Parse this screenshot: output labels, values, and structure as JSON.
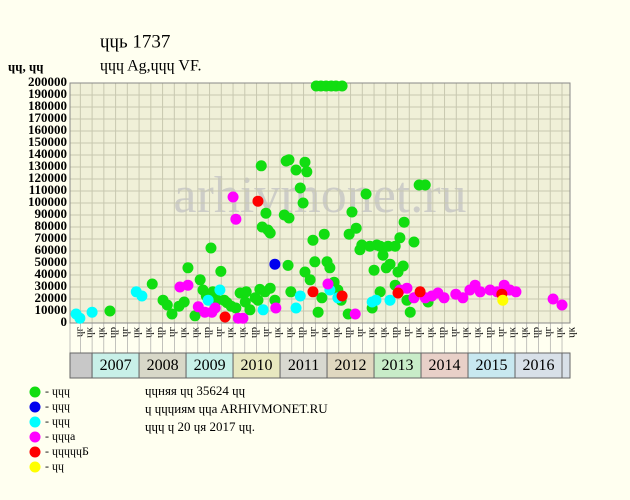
{
  "chart_data": {
    "type": "scatter",
    "title": "ɥɥь 1737",
    "subtitle": "ɥɥɥ Ag,ɥɥɥ VF.",
    "y_label": "ɥɥ, ɥɥ",
    "watermark": "arhivmonet.ru",
    "notes": [
      "ɥɥняя ɥɥ 35624 ɥɥ",
      "ɥ ɥɥɥиям ɥɥa ARHIVMONET.RU",
      "ɥɥɥ ɥ 20 ɥя 2017 ɥɥ."
    ],
    "grid": true,
    "xlim": [
      2006.53,
      2017.17
    ],
    "ylim": [
      0,
      200000
    ],
    "yticks": [
      0,
      10000,
      20000,
      30000,
      40000,
      50000,
      60000,
      70000,
      80000,
      90000,
      100000,
      110000,
      120000,
      130000,
      140000,
      150000,
      160000,
      170000,
      180000,
      190000,
      200000
    ],
    "xticks": [
      {
        "value": 2006.5,
        "label": "ɥг"
      },
      {
        "value": 2006.75,
        "label": "ɥк"
      },
      {
        "value": 2007,
        "label": "ɥк"
      },
      {
        "value": 2007.25,
        "label": "ɥр"
      },
      {
        "value": 2007.5,
        "label": "ɥг"
      },
      {
        "value": 2007.75,
        "label": "ɥк"
      },
      {
        "value": 2008,
        "label": "ɥк"
      },
      {
        "value": 2008.25,
        "label": "ɥр"
      },
      {
        "value": 2008.5,
        "label": "ɥг"
      },
      {
        "value": 2008.75,
        "label": "ɥк"
      },
      {
        "value": 2009,
        "label": "ɥк"
      },
      {
        "value": 2009.25,
        "label": "ɥр"
      },
      {
        "value": 2009.5,
        "label": "ɥг"
      },
      {
        "value": 2009.75,
        "label": "ɥк"
      },
      {
        "value": 2010,
        "label": "ɥк"
      },
      {
        "value": 2010.25,
        "label": "ɥр"
      },
      {
        "value": 2010.5,
        "label": "ɥг"
      },
      {
        "value": 2010.75,
        "label": "ɥк"
      },
      {
        "value": 2011,
        "label": "ɥк"
      },
      {
        "value": 2011.25,
        "label": "ɥр"
      },
      {
        "value": 2011.5,
        "label": "ɥг"
      },
      {
        "value": 2011.75,
        "label": "ɥк"
      },
      {
        "value": 2012,
        "label": "ɥк"
      },
      {
        "value": 2012.25,
        "label": "ɥр"
      },
      {
        "value": 2012.5,
        "label": "ɥг"
      },
      {
        "value": 2012.75,
        "label": "ɥк"
      },
      {
        "value": 2013,
        "label": "ɥк"
      },
      {
        "value": 2013.25,
        "label": "ɥр"
      },
      {
        "value": 2013.5,
        "label": "ɥг"
      },
      {
        "value": 2013.75,
        "label": "ɥк"
      },
      {
        "value": 2014,
        "label": "ɥк"
      },
      {
        "value": 2014.25,
        "label": "ɥр"
      },
      {
        "value": 2014.5,
        "label": "ɥг"
      },
      {
        "value": 2014.75,
        "label": "ɥк"
      },
      {
        "value": 2015,
        "label": "ɥк"
      },
      {
        "value": 2015.25,
        "label": "ɥр"
      },
      {
        "value": 2015.5,
        "label": "ɥг"
      },
      {
        "value": 2015.75,
        "label": "ɥк"
      },
      {
        "value": 2016,
        "label": "ɥк"
      },
      {
        "value": 2016.25,
        "label": "ɥр"
      },
      {
        "value": 2016.5,
        "label": "ɥг"
      },
      {
        "value": 2016.75,
        "label": "ɥк"
      },
      {
        "value": 2017,
        "label": "ɥк"
      }
    ],
    "years": [
      2007,
      2008,
      2009,
      2010,
      2011,
      2012,
      2013,
      2014,
      2015,
      2016
    ],
    "year_colors": [
      "#c8f0e8",
      "#d8d8c8",
      "#c8f0e8",
      "#e8e8c0",
      "#d8d8d0",
      "#e0d8c0",
      "#c8ecc8",
      "#e8d0c8",
      "#c8e8f0",
      "#d8e0e8"
    ],
    "series": [
      {
        "name": "- ɥɥɥ",
        "color": "#11dd11",
        "x": [
          2007.38,
          2008.28,
          2008.51,
          2008.6,
          2008.7,
          2008.85,
          2008.96,
          2009.04,
          2009.19,
          2009.3,
          2009.36,
          2009.43,
          2009.53,
          2009.57,
          2009.66,
          2009.74,
          2009.81,
          2009.87,
          2009.96,
          2010.06,
          2010.15,
          2010.26,
          2010.28,
          2010.36,
          2010.47,
          2010.53,
          2010.57,
          2010.6,
          2010.62,
          2010.68,
          2010.7,
          2010.74,
          2010.79,
          2010.79,
          2010.89,
          2011.09,
          2011.13,
          2011.19,
          2011.19,
          2011.17,
          2011.23,
          2011.34,
          2011.43,
          2011.49,
          2011.53,
          2011.57,
          2011.53,
          2011.64,
          2011.7,
          2011.74,
          2011.81,
          2011.89,
          2011.77,
          2011.87,
          2011.98,
          2012.09,
          2012.19,
          2012.32,
          2011.94,
          2012,
          2012.06,
          2012.15,
          2012.23,
          2012.3,
          2012.45,
          2012.47,
          2012.53,
          2012.62,
          2012.7,
          2012.74,
          2012.83,
          2012.91,
          2012.96,
          2013,
          2013.06,
          2013.13,
          2013.13,
          2013.19,
          2013.26,
          2013.3,
          2013.34,
          2013.45,
          2013.45,
          2013.51,
          2013.55,
          2013.62,
          2013.64,
          2013.7,
          2013.77,
          2013.85,
          2013.96,
          2014.09,
          2014.15
        ],
        "values": [
          10000,
          32500,
          19000,
          15000,
          7500,
          14000,
          17500,
          46000,
          6000,
          36000,
          27500,
          22500,
          62500,
          26000,
          19000,
          43000,
          19000,
          17000,
          14000,
          12500,
          25000,
          17500,
          26000,
          11000,
          21000,
          19000,
          28000,
          131000,
          80000,
          26000,
          91500,
          77500,
          75000,
          29000,
          19000,
          90000,
          135000,
          136000,
          87500,
          48000,
          26000,
          127500,
          112500,
          100000,
          134000,
          126000,
          42500,
          36000,
          69000,
          51000,
          9000,
          21000,
          197500,
          197500,
          197500,
          197500,
          197500,
          197500,
          74000,
          51000,
          46000,
          34000,
          27500,
          19000,
          7500,
          74000,
          92500,
          79000,
          61000,
          65000,
          107500,
          64000,
          12500,
          44000,
          65000,
          64000,
          26000,
          56500,
          46000,
          64000,
          49000,
          64000,
          31500,
          42500,
          71000,
          47500,
          84000,
          19000,
          9000,
          67500,
          115000,
          115000,
          17500
        ]
      },
      {
        "name": "- ɥɥɥ",
        "color": "#0000ee",
        "x": [
          2010.89
        ],
        "values": [
          49000
        ]
      },
      {
        "name": "- ɥɥɥ",
        "color": "#00ffff",
        "x": [
          2006.66,
          2006.74,
          2007,
          2007.94,
          2008.06,
          2009.47,
          2009.72,
          2010.64,
          2011.34,
          2011.43,
          2012.06,
          2012.23,
          2012.96,
          2013.04,
          2013.34
        ],
        "values": [
          7500,
          4000,
          9000,
          26000,
          22500,
          19000,
          27500,
          11000,
          12500,
          22500,
          27500,
          21000,
          17500,
          19000,
          19000
        ]
      },
      {
        "name": "- ɥɥɥa",
        "color": "#ff00ff",
        "x": [
          2008.87,
          2009.04,
          2009.26,
          2009.4,
          2009.55,
          2009.62,
          2010,
          2010.06,
          2010.11,
          2010.21,
          2010.91,
          2012.02,
          2012.6,
          2013.55,
          2013.7,
          2013.85,
          2014.09,
          2014.23,
          2014.36,
          2014.49,
          2014.74,
          2014.89,
          2015.04,
          2015.15,
          2015.26,
          2015.47,
          2015.62,
          2015.77,
          2015.89,
          2016.02,
          2016.81,
          2017
        ],
        "values": [
          30000,
          31500,
          13500,
          9000,
          9000,
          12500,
          105000,
          86500,
          4000,
          4000,
          12500,
          32500,
          7500,
          27500,
          29000,
          21000,
          21000,
          22500,
          25000,
          21000,
          24000,
          21000,
          27500,
          31500,
          26000,
          27500,
          26000,
          31500,
          27500,
          26000,
          20000,
          15000
        ]
      },
      {
        "name": "- ɥɥɥɥɥБ",
        "color": "#ff0000",
        "x": [
          2009.83,
          2010.53,
          2011.7,
          2012.32,
          2013.51,
          2013.98,
          2015.72
        ],
        "values": [
          5000,
          101500,
          26000,
          22500,
          25000,
          26000,
          24000
        ]
      },
      {
        "name": "- ɥɥ",
        "color": "#ffff00",
        "x": [
          2015.74
        ],
        "values": [
          19000
        ]
      }
    ]
  }
}
